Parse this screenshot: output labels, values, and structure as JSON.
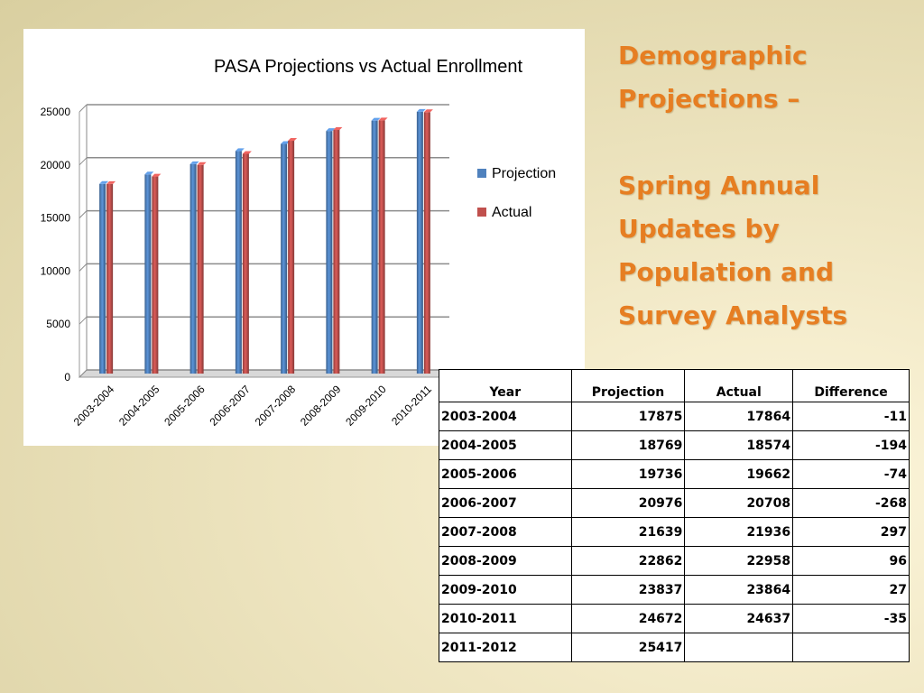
{
  "slide": {
    "title_lines": [
      "Demographic",
      "Projections –"
    ],
    "subtitle_lines": [
      "Spring Annual",
      "Updates by",
      "Population and",
      "Survey Analysts"
    ],
    "accent_color": "#e67e22"
  },
  "chart_data": {
    "type": "bar",
    "title": "PASA Projections vs Actual Enrollment",
    "xlabel": "",
    "ylabel": "",
    "ylim": [
      0,
      25000
    ],
    "yticks": [
      "0",
      "5000",
      "10000",
      "15000",
      "20000",
      "25000"
    ],
    "categories": [
      "2003-2004",
      "2004-2005",
      "2005-2006",
      "2006-2007",
      "2007-2008",
      "2008-2009",
      "2009-2010",
      "2010-2011"
    ],
    "series": [
      {
        "name": "Projection",
        "color": "#4f81bd",
        "values": [
          17875,
          18769,
          19736,
          20976,
          21639,
          22862,
          23837,
          24672
        ]
      },
      {
        "name": "Actual",
        "color": "#c0504d",
        "values": [
          17864,
          18574,
          19662,
          20708,
          21936,
          22958,
          23864,
          24637
        ]
      }
    ],
    "grid": true,
    "legend": "right"
  },
  "table": {
    "headers": [
      "Year",
      "Projection",
      "Actual",
      "Difference"
    ],
    "rows": [
      [
        "2003-2004",
        "17875",
        "17864",
        "-11"
      ],
      [
        "2004-2005",
        "18769",
        "18574",
        "-194"
      ],
      [
        "2005-2006",
        "19736",
        "19662",
        "-74"
      ],
      [
        "2006-2007",
        "20976",
        "20708",
        "-268"
      ],
      [
        "2007-2008",
        "21639",
        "21936",
        "297"
      ],
      [
        "2008-2009",
        "22862",
        "22958",
        "96"
      ],
      [
        "2009-2010",
        "23837",
        "23864",
        "27"
      ],
      [
        "2010-2011",
        "24672",
        "24637",
        "-35"
      ],
      [
        "2011-2012",
        "25417",
        "",
        ""
      ]
    ]
  }
}
